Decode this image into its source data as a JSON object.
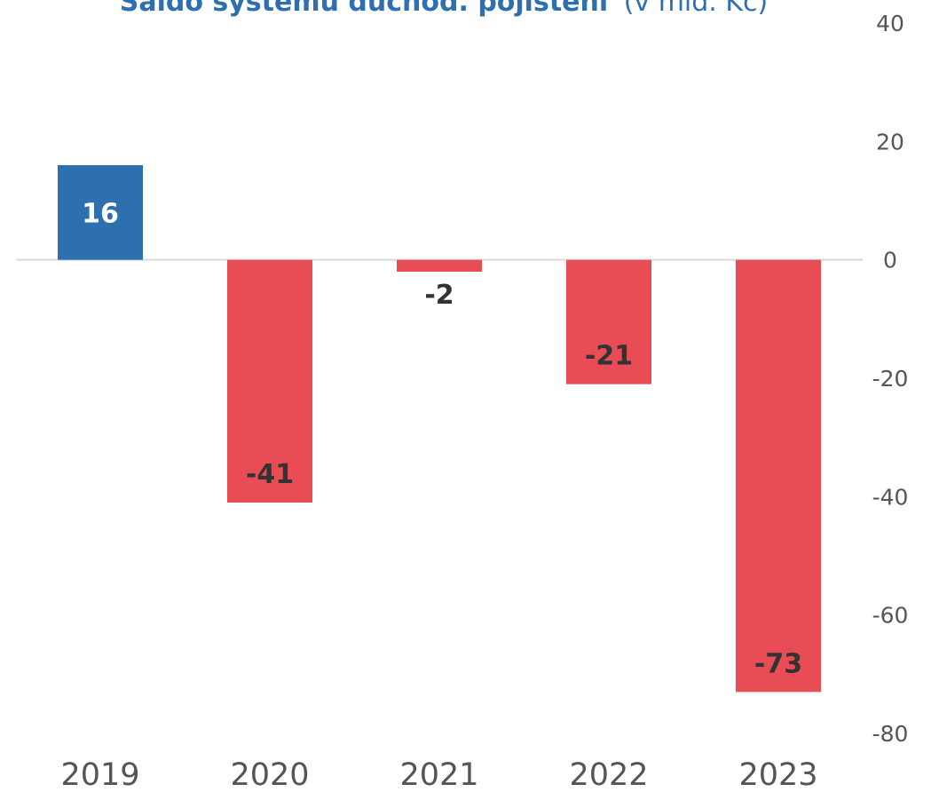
{
  "chart_data": {
    "type": "bar",
    "title": "Saldo systému důchod. pojištění",
    "subtitle": "(v mld. Kč)",
    "categories": [
      "2019",
      "2020",
      "2021",
      "2022",
      "2023"
    ],
    "values": [
      16,
      -41,
      -2,
      -21,
      -73
    ],
    "ylim": [
      -80,
      40
    ],
    "yticks": [
      40,
      20,
      0,
      -20,
      -40,
      -60,
      -80
    ],
    "y_axis_position": "right",
    "grid": false,
    "colors": {
      "positive": "#2e6fb0",
      "negative": "#e84c55",
      "zero_line": "#d9d9d9",
      "label_on_bar": "#333333",
      "label_inside_positive": "#ffffff"
    }
  }
}
